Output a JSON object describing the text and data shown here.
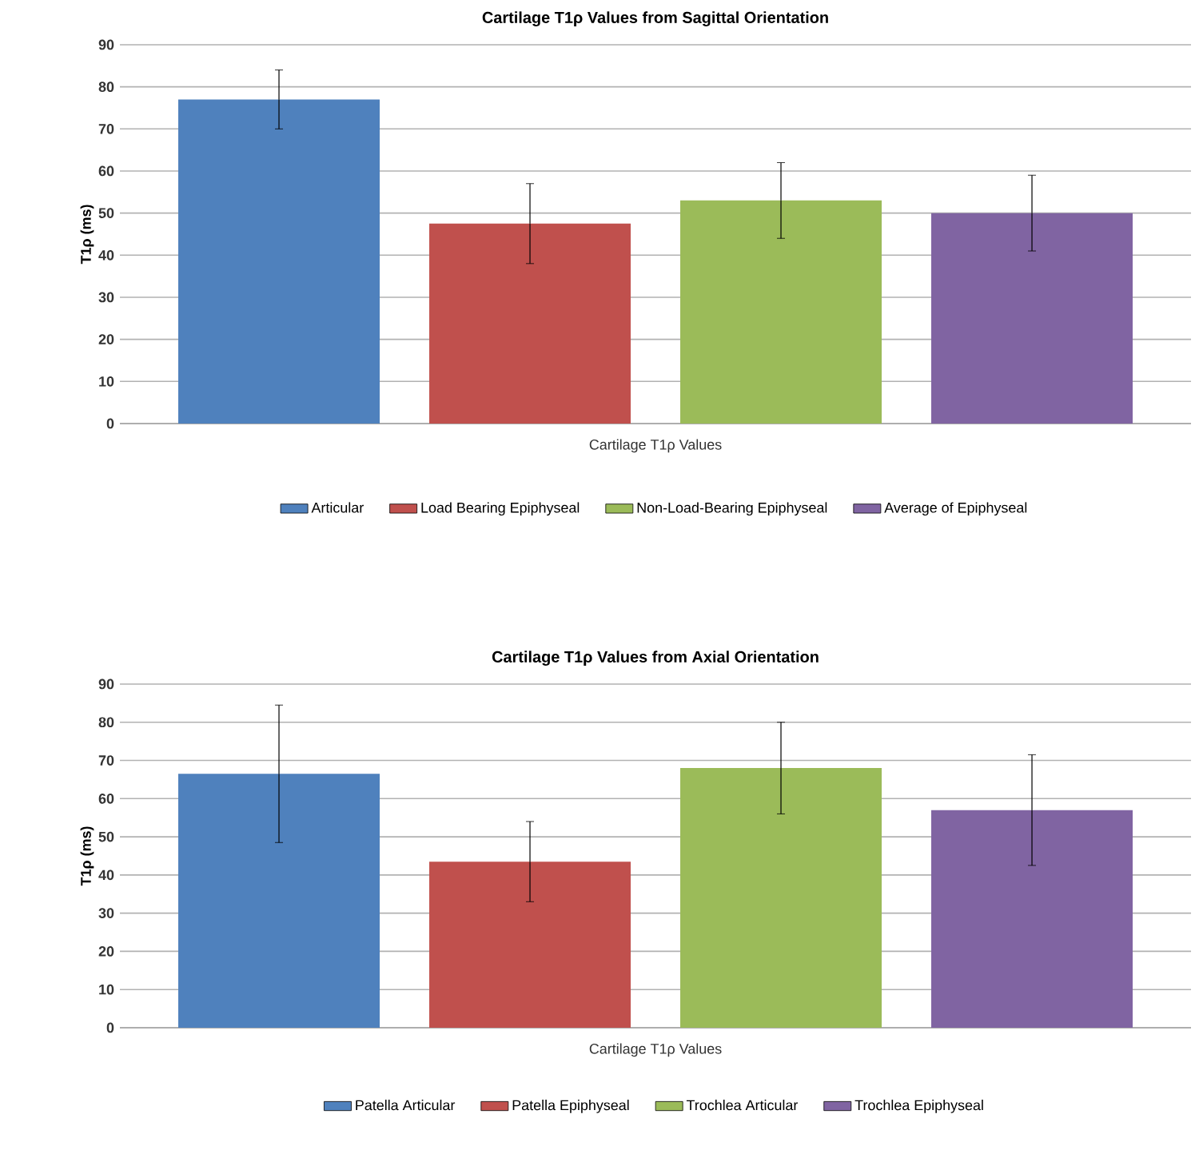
{
  "chart_data": [
    {
      "type": "bar",
      "title": "Cartilage T1ρ Values from Sagittal Orientation",
      "xlabel": "Cartilage T1ρ Values",
      "ylabel": "T1ρ (ms)",
      "categories": [
        null
      ],
      "series": [
        {
          "name": "Articular",
          "color": "#4f81bd",
          "values": [
            77
          ],
          "errors": [
            7
          ]
        },
        {
          "name": "Load Bearing Epiphyseal",
          "color": "#c0504d",
          "values": [
            47.5
          ],
          "errors": [
            9.5
          ]
        },
        {
          "name": "Non-Load-Bearing Epiphyseal",
          "color": "#9bbb59",
          "values": [
            53
          ],
          "errors": [
            9
          ]
        },
        {
          "name": "Average of Epiphyseal",
          "color": "#8064a2",
          "values": [
            50
          ],
          "errors": [
            9
          ]
        }
      ],
      "ylim": [
        0,
        90
      ],
      "yticks": [
        0,
        10,
        20,
        30,
        40,
        50,
        60,
        70,
        80,
        90
      ],
      "grid": "y",
      "legend": "bottom"
    },
    {
      "type": "bar",
      "title": "Cartilage T1ρ Values from Axial Orientation",
      "xlabel": "Cartilage T1ρ Values",
      "ylabel": "T1ρ (ms)",
      "categories": [
        null
      ],
      "series": [
        {
          "name": "Patella Articular",
          "color": "#4f81bd",
          "values": [
            66.5
          ],
          "errors": [
            18
          ]
        },
        {
          "name": "Patella Epiphyseal",
          "color": "#c0504d",
          "values": [
            43.5
          ],
          "errors": [
            10.5
          ]
        },
        {
          "name": "Trochlea Articular",
          "color": "#9bbb59",
          "values": [
            68
          ],
          "errors": [
            12
          ]
        },
        {
          "name": "Trochlea Epiphyseal",
          "color": "#8064a2",
          "values": [
            57
          ],
          "errors": [
            14.5
          ]
        }
      ],
      "ylim": [
        0,
        90
      ],
      "yticks": [
        0,
        10,
        20,
        30,
        40,
        50,
        60,
        70,
        80,
        90
      ],
      "grid": "y",
      "legend": "bottom"
    }
  ]
}
